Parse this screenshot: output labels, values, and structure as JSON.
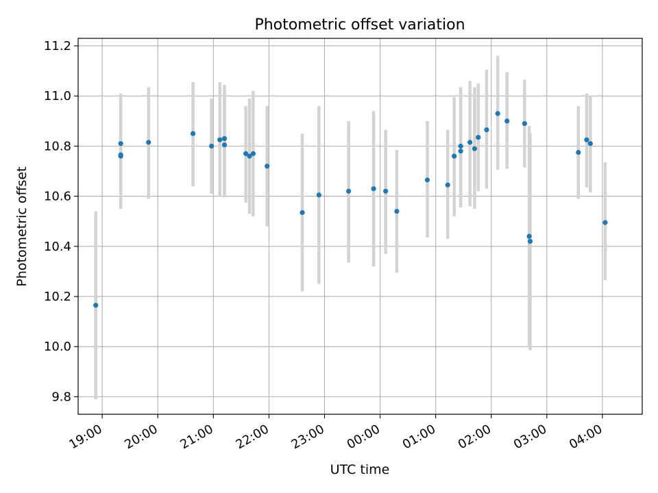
{
  "chart_data": {
    "type": "scatter",
    "title": "Photometric offset variation",
    "xlabel": "UTC time",
    "ylabel": "Photometric offset",
    "x_tick_labels": [
      "19:00",
      "20:00",
      "21:00",
      "22:00",
      "23:00",
      "00:00",
      "01:00",
      "02:00",
      "03:00",
      "04:00"
    ],
    "y_tick_labels": [
      "9.8",
      "10.0",
      "10.2",
      "10.4",
      "10.6",
      "10.8",
      "11.0",
      "11.2"
    ],
    "x_tick_values": [
      "19:00",
      "20:00",
      "21:00",
      "22:00",
      "23:00",
      "00:00",
      "01:00",
      "02:00",
      "03:00",
      "04:00"
    ],
    "y_tick_values": [
      9.8,
      10.0,
      10.2,
      10.4,
      10.6,
      10.8,
      11.0,
      11.2
    ],
    "xlim": [
      "18:34",
      "04:43"
    ],
    "ylim": [
      9.73,
      11.23
    ],
    "grid": true,
    "colors": {
      "point": "#1f77b4",
      "errorbar": "#d3d3d3",
      "grid": "#b0b0b0"
    },
    "points": [
      {
        "x": "18:53",
        "y": 10.165,
        "ylo": 9.79,
        "yhi": 10.54
      },
      {
        "x": "19:20",
        "y": 10.81,
        "ylo": 10.61,
        "yhi": 11.01
      },
      {
        "x": "19:20",
        "y": 10.765,
        "ylo": 10.55,
        "yhi": 10.98
      },
      {
        "x": "19:20",
        "y": 10.76,
        "ylo": 10.55,
        "yhi": 10.97
      },
      {
        "x": "19:50",
        "y": 10.815,
        "ylo": 10.59,
        "yhi": 11.035
      },
      {
        "x": "20:38",
        "y": 10.85,
        "ylo": 10.64,
        "yhi": 11.055
      },
      {
        "x": "20:58",
        "y": 10.8,
        "ylo": 10.61,
        "yhi": 10.99
      },
      {
        "x": "21:07",
        "y": 10.825,
        "ylo": 10.6,
        "yhi": 11.055
      },
      {
        "x": "21:12",
        "y": 10.83,
        "ylo": 10.595,
        "yhi": 11.045
      },
      {
        "x": "21:12",
        "y": 10.805,
        "ylo": 10.6,
        "yhi": 11.01
      },
      {
        "x": "21:35",
        "y": 10.77,
        "ylo": 10.575,
        "yhi": 10.96
      },
      {
        "x": "21:39",
        "y": 10.76,
        "ylo": 10.53,
        "yhi": 10.99
      },
      {
        "x": "21:43",
        "y": 10.77,
        "ylo": 10.52,
        "yhi": 11.02
      },
      {
        "x": "21:58",
        "y": 10.72,
        "ylo": 10.48,
        "yhi": 10.96
      },
      {
        "x": "22:36",
        "y": 10.535,
        "ylo": 10.22,
        "yhi": 10.85
      },
      {
        "x": "22:54",
        "y": 10.605,
        "ylo": 10.25,
        "yhi": 10.96
      },
      {
        "x": "23:26",
        "y": 10.62,
        "ylo": 10.335,
        "yhi": 10.9
      },
      {
        "x": "23:53",
        "y": 10.63,
        "ylo": 10.32,
        "yhi": 10.94
      },
      {
        "x": "00:06",
        "y": 10.62,
        "ylo": 10.37,
        "yhi": 10.865
      },
      {
        "x": "00:18",
        "y": 10.54,
        "ylo": 10.295,
        "yhi": 10.785
      },
      {
        "x": "00:51",
        "y": 10.665,
        "ylo": 10.435,
        "yhi": 10.9
      },
      {
        "x": "01:13",
        "y": 10.645,
        "ylo": 10.43,
        "yhi": 10.865
      },
      {
        "x": "01:20",
        "y": 10.76,
        "ylo": 10.52,
        "yhi": 10.995
      },
      {
        "x": "01:27",
        "y": 10.8,
        "ylo": 10.57,
        "yhi": 11.035
      },
      {
        "x": "01:27",
        "y": 10.78,
        "ylo": 10.555,
        "yhi": 11.01
      },
      {
        "x": "01:37",
        "y": 10.815,
        "ylo": 10.56,
        "yhi": 11.06
      },
      {
        "x": "01:42",
        "y": 10.79,
        "ylo": 10.55,
        "yhi": 11.035
      },
      {
        "x": "01:46",
        "y": 10.835,
        "ylo": 10.62,
        "yhi": 11.05
      },
      {
        "x": "01:55",
        "y": 10.865,
        "ylo": 10.63,
        "yhi": 11.105
      },
      {
        "x": "02:07",
        "y": 10.93,
        "ylo": 10.705,
        "yhi": 11.16
      },
      {
        "x": "02:17",
        "y": 10.9,
        "ylo": 10.71,
        "yhi": 11.095
      },
      {
        "x": "02:36",
        "y": 10.89,
        "ylo": 10.715,
        "yhi": 11.065
      },
      {
        "x": "02:41",
        "y": 10.44,
        "ylo": 10.0,
        "yhi": 10.88
      },
      {
        "x": "02:42",
        "y": 10.42,
        "ylo": 9.985,
        "yhi": 10.85
      },
      {
        "x": "03:34",
        "y": 10.775,
        "ylo": 10.59,
        "yhi": 10.96
      },
      {
        "x": "03:43",
        "y": 10.825,
        "ylo": 10.635,
        "yhi": 11.01
      },
      {
        "x": "03:47",
        "y": 10.81,
        "ylo": 10.615,
        "yhi": 11.0
      },
      {
        "x": "04:03",
        "y": 10.495,
        "ylo": 10.265,
        "yhi": 10.735
      }
    ]
  }
}
